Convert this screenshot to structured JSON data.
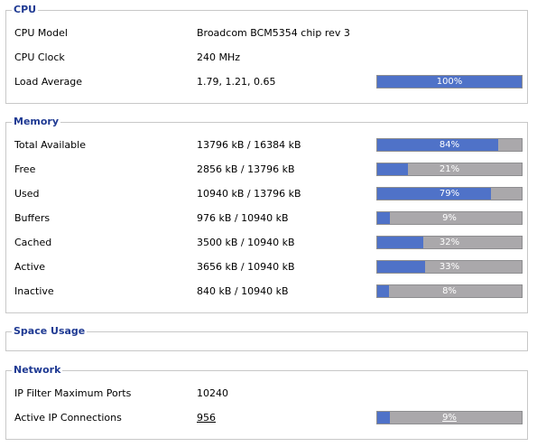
{
  "cpu": {
    "title": "CPU",
    "rows": [
      {
        "label": "CPU Model",
        "value": "Broadcom BCM5354 chip rev 3"
      },
      {
        "label": "CPU Clock",
        "value": "240 MHz"
      },
      {
        "label": "Load Average",
        "value": "1.79, 1.21, 0.65",
        "percent": 100,
        "bar_label": "100%"
      }
    ]
  },
  "memory": {
    "title": "Memory",
    "rows": [
      {
        "label": "Total Available",
        "value": "13796 kB / 16384 kB",
        "percent": 84,
        "bar_label": "84%"
      },
      {
        "label": "Free",
        "value": "2856 kB / 13796 kB",
        "percent": 21,
        "bar_label": "21%"
      },
      {
        "label": "Used",
        "value": "10940 kB / 13796 kB",
        "percent": 79,
        "bar_label": "79%"
      },
      {
        "label": "Buffers",
        "value": "976 kB / 10940 kB",
        "percent": 9,
        "bar_label": "9%"
      },
      {
        "label": "Cached",
        "value": "3500 kB / 10940 kB",
        "percent": 32,
        "bar_label": "32%"
      },
      {
        "label": "Active",
        "value": "3656 kB / 10940 kB",
        "percent": 33,
        "bar_label": "33%"
      },
      {
        "label": "Inactive",
        "value": "840 kB / 10940 kB",
        "percent": 8,
        "bar_label": "8%"
      }
    ]
  },
  "space_usage": {
    "title": "Space Usage"
  },
  "network": {
    "title": "Network",
    "rows": [
      {
        "label": "IP Filter Maximum Ports",
        "value": "10240"
      },
      {
        "label": "Active IP Connections",
        "value": "956",
        "percent": 9,
        "bar_label": "9%"
      }
    ]
  },
  "colors": {
    "section_title": "#1f3a93",
    "bar_fill": "#4f72c8",
    "bar_track": "#aaa8ab",
    "border": "#c8c8c8"
  }
}
